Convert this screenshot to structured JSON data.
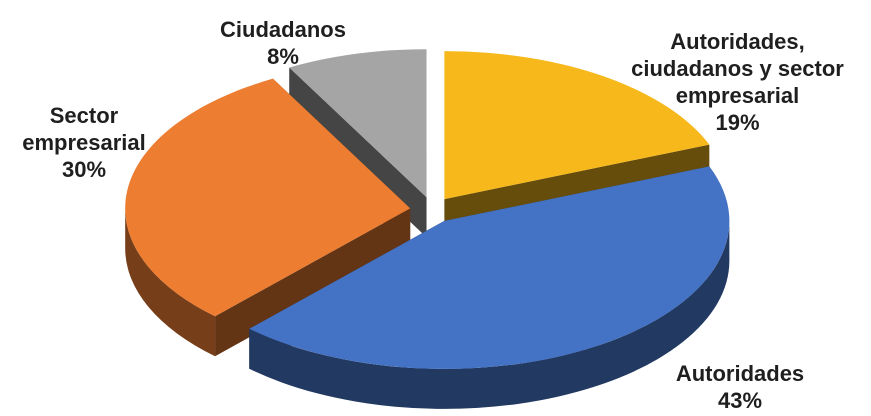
{
  "chart_data": {
    "type": "pie3d",
    "categories": [
      "Autoridades, ciudadanos y sector empresarial",
      "Autoridades",
      "Sector empresarial",
      "Ciudadanos"
    ],
    "values": [
      19,
      43,
      30,
      8
    ],
    "value_labels": [
      "19%",
      "43%",
      "30%",
      "8%"
    ],
    "colors": [
      "#f6b81a",
      "#4472c4",
      "#ed7d31",
      "#a5a5a5"
    ]
  }
}
